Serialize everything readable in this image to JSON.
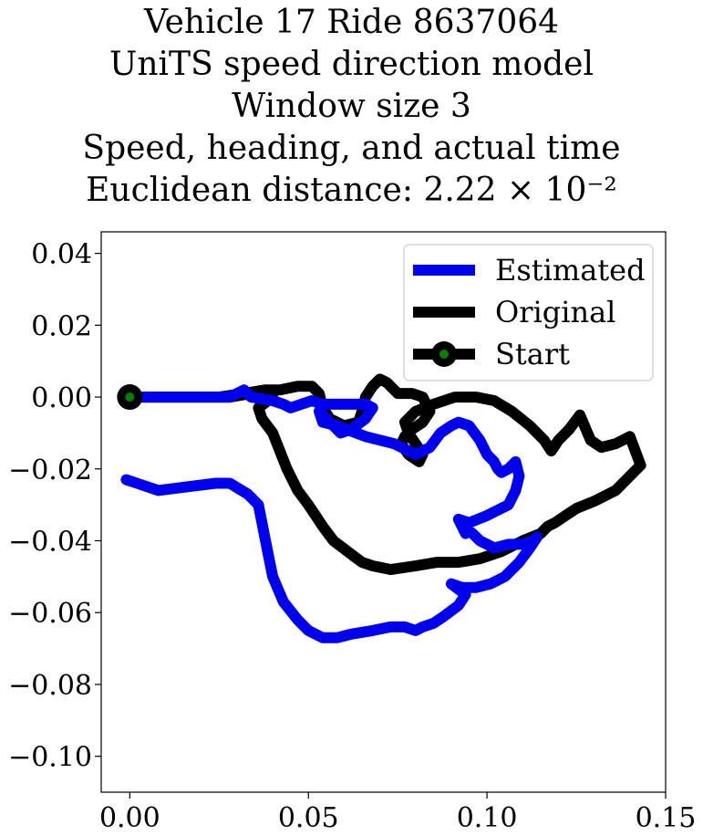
{
  "chart_data": {
    "type": "line",
    "title": [
      "Vehicle 17 Ride 8637064",
      "UniTS speed direction model",
      "Window size 3",
      "Speed, heading, and actual time",
      "Euclidean distance: 2.22 × 10⁻²"
    ],
    "xlabel": "",
    "ylabel": "",
    "xlim": [
      -0.008,
      0.15
    ],
    "ylim": [
      -0.11,
      0.046
    ],
    "x_ticks": [
      0.0,
      0.05,
      0.1,
      0.15
    ],
    "x_tick_labels": [
      "0.00",
      "0.05",
      "0.10",
      "0.15"
    ],
    "y_ticks": [
      0.04,
      0.02,
      0.0,
      -0.02,
      -0.04,
      -0.06,
      -0.08,
      -0.1
    ],
    "y_tick_labels": [
      "0.04",
      "0.02",
      "0.00",
      "−0.02",
      "−0.04",
      "−0.06",
      "−0.08",
      "−0.10"
    ],
    "grid": false,
    "legend_position": "top-right",
    "series": [
      {
        "name": "Estimated",
        "color": "#0000ee",
        "x": [
          0.0,
          0.006,
          0.012,
          0.02,
          0.028,
          0.032,
          0.034,
          0.04,
          0.043,
          0.045,
          0.048,
          0.051,
          0.054,
          0.058,
          0.062,
          0.066,
          0.068,
          0.066,
          0.062,
          0.059,
          0.057,
          0.055,
          0.053,
          0.054,
          0.058,
          0.066,
          0.074,
          0.08,
          0.084,
          0.087,
          0.09,
          0.092,
          0.095,
          0.098,
          0.1,
          0.102,
          0.103,
          0.104,
          0.106,
          0.108,
          0.109,
          0.108,
          0.106,
          0.1,
          0.095,
          0.092,
          0.094,
          0.093,
          0.096,
          0.098,
          0.1,
          0.102,
          0.106,
          0.11,
          0.113,
          0.114,
          0.112,
          0.109,
          0.105,
          0.101,
          0.097,
          0.093,
          0.09,
          0.094,
          0.092,
          0.088,
          0.085,
          0.082,
          0.08,
          0.077,
          0.073,
          0.068,
          0.062,
          0.058,
          0.054,
          0.05,
          0.047,
          0.043,
          0.04,
          0.039,
          0.038,
          0.036,
          0.033,
          0.028,
          0.024,
          0.016,
          0.008,
          0.002,
          -0.001
        ],
        "y": [
          0.0,
          0.0,
          0.0,
          0.0,
          0.0,
          0.002,
          0.0,
          -0.001,
          -0.002,
          -0.003,
          -0.002,
          -0.001,
          -0.002,
          -0.002,
          -0.002,
          -0.002,
          -0.003,
          -0.006,
          -0.009,
          -0.01,
          -0.008,
          -0.006,
          -0.004,
          -0.007,
          -0.008,
          -0.011,
          -0.013,
          -0.016,
          -0.014,
          -0.01,
          -0.008,
          -0.007,
          -0.008,
          -0.012,
          -0.016,
          -0.018,
          -0.02,
          -0.021,
          -0.02,
          -0.018,
          -0.022,
          -0.026,
          -0.03,
          -0.033,
          -0.035,
          -0.034,
          -0.038,
          -0.036,
          -0.038,
          -0.04,
          -0.041,
          -0.042,
          -0.041,
          -0.041,
          -0.04,
          -0.039,
          -0.042,
          -0.046,
          -0.05,
          -0.052,
          -0.053,
          -0.053,
          -0.052,
          -0.055,
          -0.058,
          -0.061,
          -0.063,
          -0.064,
          -0.065,
          -0.064,
          -0.064,
          -0.065,
          -0.066,
          -0.067,
          -0.067,
          -0.065,
          -0.062,
          -0.057,
          -0.05,
          -0.045,
          -0.04,
          -0.03,
          -0.027,
          -0.024,
          -0.024,
          -0.025,
          -0.026,
          -0.024,
          -0.023
        ]
      },
      {
        "name": "Original",
        "color": "#000000",
        "x": [
          0.0,
          0.006,
          0.012,
          0.02,
          0.028,
          0.034,
          0.038,
          0.042,
          0.047,
          0.051,
          0.053,
          0.054,
          0.056,
          0.06,
          0.064,
          0.065,
          0.066,
          0.068,
          0.07,
          0.072,
          0.075,
          0.079,
          0.082,
          0.084,
          0.082,
          0.079,
          0.077,
          0.076,
          0.078,
          0.081,
          0.082,
          0.08,
          0.078,
          0.077,
          0.08,
          0.085,
          0.091,
          0.097,
          0.102,
          0.107,
          0.112,
          0.116,
          0.118,
          0.12,
          0.123,
          0.126,
          0.129,
          0.132,
          0.136,
          0.14,
          0.143,
          0.14,
          0.136,
          0.13,
          0.125,
          0.122,
          0.119,
          0.117,
          0.115,
          0.11,
          0.104,
          0.098,
          0.092,
          0.086,
          0.08,
          0.073,
          0.068,
          0.065,
          0.061,
          0.057,
          0.054,
          0.052,
          0.05,
          0.047,
          0.044,
          0.042,
          0.04,
          0.037,
          0.036,
          0.04,
          0.038,
          0.032,
          0.025,
          0.016,
          0.008,
          0.0
        ],
        "y": [
          0.0,
          0.0,
          0.0,
          0.0,
          0.0,
          0.001,
          0.002,
          0.002,
          0.003,
          0.003,
          0.001,
          -0.003,
          -0.006,
          -0.008,
          -0.007,
          -0.004,
          0.0,
          0.003,
          0.005,
          0.004,
          0.001,
          0.001,
          0.0,
          -0.004,
          -0.007,
          -0.009,
          -0.011,
          -0.013,
          -0.016,
          -0.018,
          -0.016,
          -0.013,
          -0.01,
          -0.007,
          -0.004,
          -0.002,
          0.0,
          0.0,
          -0.001,
          -0.004,
          -0.008,
          -0.012,
          -0.015,
          -0.012,
          -0.009,
          -0.005,
          -0.012,
          -0.014,
          -0.013,
          -0.011,
          -0.019,
          -0.022,
          -0.026,
          -0.029,
          -0.031,
          -0.033,
          -0.035,
          -0.036,
          -0.038,
          -0.04,
          -0.043,
          -0.045,
          -0.046,
          -0.046,
          -0.047,
          -0.048,
          -0.047,
          -0.046,
          -0.043,
          -0.04,
          -0.036,
          -0.033,
          -0.03,
          -0.026,
          -0.02,
          -0.015,
          -0.01,
          -0.006,
          -0.003,
          0.0,
          0.002,
          0.001,
          0.0,
          0.0,
          0.0,
          0.0
        ]
      }
    ],
    "legend": [
      {
        "label": "Estimated",
        "kind": "line",
        "color": "#0000ee"
      },
      {
        "label": "Original",
        "kind": "line",
        "color": "#000000"
      },
      {
        "label": "Start",
        "kind": "marker",
        "color": "#000000",
        "marker_color": "#008000"
      }
    ],
    "start_point": {
      "name": "Start",
      "x": 0.0,
      "y": 0.0,
      "color": "#008000"
    }
  }
}
